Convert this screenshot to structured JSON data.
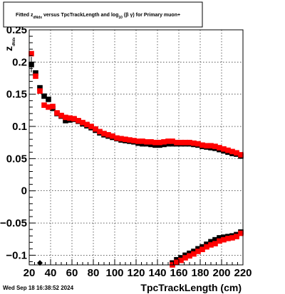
{
  "chart_data": {
    "type": "scatter",
    "title": {
      "prefix": "Fitted  z",
      "prefix_sub": "dNdx",
      "middle": "  versus TpcTrackLength and log",
      "middle_sub": "10",
      "suffix": "(β γ) for Primary muon+"
    },
    "xlabel": "TpcTrackLength (cm)",
    "ylabel": "z",
    "ylabel_sub": "dNdx",
    "xlim": [
      20,
      220
    ],
    "ylim": [
      -0.115,
      0.25
    ],
    "x_ticks": [
      "20",
      "40",
      "60",
      "80",
      "100",
      "120",
      "140",
      "160",
      "180",
      "200",
      "220"
    ],
    "y_ticks": [
      {
        "value": -0.1,
        "label": "−0.1"
      },
      {
        "value": -0.05,
        "label": "−0.05"
      },
      {
        "value": 0,
        "label": "0"
      },
      {
        "value": 0.05,
        "label": "0.05"
      },
      {
        "value": 0.1,
        "label": "0.1"
      },
      {
        "value": 0.15,
        "label": "0.15"
      },
      {
        "value": 0.2,
        "label": "0.2"
      },
      {
        "value": 0.25,
        "label": "0.25"
      }
    ],
    "grid": true,
    "series": [
      {
        "color": "#000000",
        "x": [
          22,
          26,
          30,
          34,
          38,
          42,
          46,
          50,
          54,
          58,
          62,
          66,
          70,
          74,
          78,
          82,
          86,
          90,
          94,
          98,
          102,
          106,
          110,
          114,
          118,
          122,
          126,
          130,
          134,
          138,
          142,
          146,
          150,
          154,
          158,
          162,
          166,
          170,
          174,
          178,
          182,
          186,
          190,
          194,
          198,
          202,
          206,
          210,
          214,
          218
        ],
        "y": [
          0.196,
          0.183,
          0.16,
          0.147,
          0.142,
          0.128,
          0.12,
          0.116,
          0.109,
          0.11,
          0.111,
          0.108,
          0.104,
          0.101,
          0.098,
          0.094,
          0.09,
          0.087,
          0.085,
          0.083,
          0.081,
          0.079,
          0.078,
          0.077,
          0.076,
          0.074,
          0.073,
          0.073,
          0.072,
          0.071,
          0.071,
          0.072,
          0.073,
          0.073,
          0.073,
          0.073,
          0.073,
          0.073,
          0.072,
          0.071,
          0.069,
          0.068,
          0.067,
          0.066,
          0.064,
          0.062,
          0.06,
          0.058,
          0.057,
          0.054
        ]
      },
      {
        "color": "#ff0000",
        "x": [
          22,
          26,
          30,
          34,
          38,
          42,
          46,
          50,
          54,
          58,
          62,
          66,
          70,
          74,
          78,
          82,
          86,
          90,
          94,
          98,
          102,
          106,
          110,
          114,
          118,
          122,
          126,
          130,
          134,
          138,
          142,
          146,
          150,
          154,
          158,
          162,
          166,
          170,
          174,
          178,
          182,
          186,
          190,
          194,
          198,
          202,
          206,
          210,
          214,
          218
        ],
        "y": [
          0.213,
          0.178,
          0.155,
          0.133,
          0.13,
          0.131,
          0.121,
          0.117,
          0.114,
          0.113,
          0.112,
          0.109,
          0.106,
          0.103,
          0.1,
          0.096,
          0.092,
          0.089,
          0.087,
          0.085,
          0.082,
          0.081,
          0.08,
          0.079,
          0.078,
          0.077,
          0.077,
          0.076,
          0.076,
          0.075,
          0.075,
          0.076,
          0.077,
          0.077,
          0.075,
          0.075,
          0.075,
          0.075,
          0.074,
          0.073,
          0.071,
          0.07,
          0.07,
          0.069,
          0.067,
          0.065,
          0.063,
          0.061,
          0.059,
          0.056
        ]
      },
      {
        "color": "#000000",
        "x": [
          154,
          158,
          162,
          166,
          170,
          174,
          178,
          182,
          186,
          190,
          194,
          198,
          202,
          206,
          210,
          214,
          218
        ],
        "y": [
          -0.112,
          -0.107,
          -0.104,
          -0.1,
          -0.097,
          -0.094,
          -0.09,
          -0.087,
          -0.083,
          -0.079,
          -0.076,
          -0.073,
          -0.072,
          -0.071,
          -0.07,
          -0.068,
          -0.064
        ]
      },
      {
        "color": "#ff0000",
        "x": [
          154,
          158,
          162,
          166,
          170,
          174,
          178,
          182,
          186,
          190,
          194,
          198,
          202,
          206,
          210,
          214,
          218
        ],
        "y": [
          -0.115,
          -0.111,
          -0.108,
          -0.104,
          -0.101,
          -0.098,
          -0.094,
          -0.091,
          -0.087,
          -0.084,
          -0.082,
          -0.078,
          -0.076,
          -0.074,
          -0.073,
          -0.071,
          -0.066
        ]
      }
    ],
    "special_points": [
      {
        "x": 30,
        "y": -0.112,
        "marker": "diamond",
        "color": "#000000"
      }
    ]
  },
  "footer": {
    "timestamp": "Wed Sep 18 16:38:52 2024"
  }
}
